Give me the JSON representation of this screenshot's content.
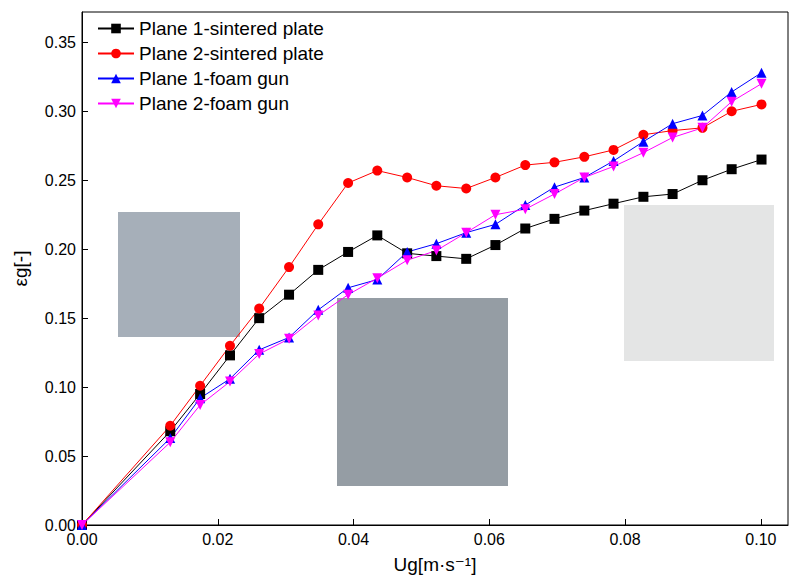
{
  "chart_data": {
    "type": "line",
    "x_label": "Ug[m·s⁻¹]",
    "y_label": "εg[-]",
    "xlim": [
      0,
      0.104
    ],
    "ylim": [
      0,
      0.372
    ],
    "xticks": [
      {
        "value": 0,
        "label": "0.00"
      },
      {
        "value": 0.02,
        "label": "0.02"
      },
      {
        "value": 0.04,
        "label": "0.04"
      },
      {
        "value": 0.06,
        "label": "0.06"
      },
      {
        "value": 0.08,
        "label": "0.08"
      },
      {
        "value": 0.1,
        "label": "0.10"
      }
    ],
    "yticks": [
      {
        "value": 0,
        "label": "0.00"
      },
      {
        "value": 0.05,
        "label": "0.05"
      },
      {
        "value": 0.1,
        "label": "0.10"
      },
      {
        "value": 0.15,
        "label": "0.15"
      },
      {
        "value": 0.2,
        "label": "0.20"
      },
      {
        "value": 0.25,
        "label": "0.25"
      },
      {
        "value": 0.3,
        "label": "0.30"
      },
      {
        "value": 0.35,
        "label": "0.35"
      }
    ],
    "grid": false,
    "legend": "upper left",
    "x": [
      0,
      0.013,
      0.0174,
      0.0218,
      0.0261,
      0.0305,
      0.0348,
      0.0392,
      0.0435,
      0.0479,
      0.0522,
      0.0566,
      0.0609,
      0.0653,
      0.0696,
      0.074,
      0.0783,
      0.0827,
      0.087,
      0.0914,
      0.0957,
      0.1001
    ],
    "series": [
      {
        "name": "Plane 1-sintered plate",
        "color": "#000000",
        "marker": "square",
        "values": [
          0,
          0.068,
          0.095,
          0.123,
          0.15,
          0.167,
          0.185,
          0.198,
          0.21,
          0.197,
          0.195,
          0.193,
          0.203,
          0.215,
          0.222,
          0.228,
          0.233,
          0.238,
          0.24,
          0.25,
          0.258,
          0.265
        ]
      },
      {
        "name": "Plane 2-sintered plate",
        "color": "#ff0000",
        "marker": "circle",
        "values": [
          0,
          0.072,
          0.101,
          0.13,
          0.157,
          0.187,
          0.218,
          0.248,
          0.257,
          0.252,
          0.246,
          0.244,
          0.252,
          0.261,
          0.263,
          0.267,
          0.272,
          0.283,
          0.286,
          0.288,
          0.3,
          0.305
        ]
      },
      {
        "name": "Plane 1-foam gun",
        "color": "#0000ff",
        "marker": "triangle",
        "values": [
          0,
          0.063,
          0.092,
          0.106,
          0.127,
          0.136,
          0.156,
          0.172,
          0.178,
          0.198,
          0.204,
          0.212,
          0.218,
          0.232,
          0.245,
          0.252,
          0.264,
          0.278,
          0.291,
          0.297,
          0.314,
          0.328
        ]
      },
      {
        "name": "Plane 2-foam gun",
        "color": "#ff00ff",
        "marker": "triangle-down",
        "values": [
          0,
          0.06,
          0.087,
          0.104,
          0.124,
          0.135,
          0.152,
          0.167,
          0.179,
          0.192,
          0.199,
          0.212,
          0.225,
          0.229,
          0.24,
          0.252,
          0.26,
          0.27,
          0.281,
          0.288,
          0.307,
          0.32
        ]
      }
    ]
  }
}
